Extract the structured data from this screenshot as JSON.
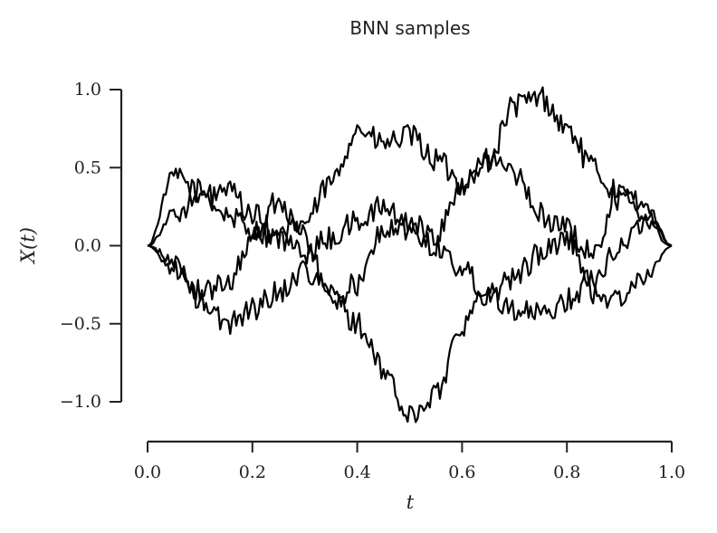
{
  "chart_data": {
    "type": "line",
    "title": "BNN samples",
    "xlabel": "t",
    "ylabel": "X(t)",
    "xlim": [
      0.0,
      1.0
    ],
    "ylim": [
      -1.2,
      1.1
    ],
    "xticks": [
      0.0,
      0.2,
      0.4,
      0.6,
      0.8,
      1.0
    ],
    "yticks": [
      -1.0,
      -0.5,
      0.0,
      0.5,
      1.0
    ],
    "xtick_labels": [
      "0.0",
      "0.2",
      "0.4",
      "0.6",
      "0.8",
      "1.0"
    ],
    "ytick_labels": [
      "−1.0",
      "−0.5",
      "0.0",
      "0.5",
      "1.0"
    ],
    "grid": false,
    "line_color": "#000000",
    "x": [
      0.0,
      0.05,
      0.1,
      0.15,
      0.2,
      0.25,
      0.3,
      0.35,
      0.4,
      0.45,
      0.5,
      0.55,
      0.6,
      0.65,
      0.7,
      0.75,
      0.8,
      0.85,
      0.9,
      0.95,
      1.0
    ],
    "series": [
      {
        "values": [
          0.0,
          0.45,
          0.35,
          0.2,
          0.1,
          0.05,
          0.15,
          0.4,
          0.75,
          0.65,
          0.7,
          0.55,
          0.4,
          0.55,
          0.9,
          0.95,
          0.75,
          0.5,
          0.3,
          0.2,
          0.0
        ]
      },
      {
        "values": [
          0.0,
          0.2,
          0.3,
          0.35,
          0.2,
          0.05,
          -0.05,
          0.05,
          0.15,
          0.25,
          0.1,
          0.0,
          -0.15,
          -0.3,
          -0.4,
          -0.45,
          -0.35,
          -0.2,
          0.0,
          0.15,
          0.0
        ]
      },
      {
        "values": [
          0.0,
          -0.15,
          -0.35,
          -0.5,
          -0.4,
          -0.3,
          -0.15,
          -0.3,
          -0.5,
          -0.8,
          -1.1,
          -0.95,
          -0.5,
          -0.3,
          -0.2,
          -0.05,
          0.05,
          -0.3,
          -0.35,
          -0.2,
          0.0
        ]
      },
      {
        "values": [
          0.0,
          -0.1,
          -0.3,
          -0.25,
          0.05,
          0.3,
          0.05,
          -0.35,
          -0.25,
          0.1,
          0.15,
          0.05,
          0.4,
          0.55,
          0.45,
          0.2,
          0.1,
          -0.05,
          0.4,
          0.25,
          0.0
        ]
      }
    ]
  }
}
